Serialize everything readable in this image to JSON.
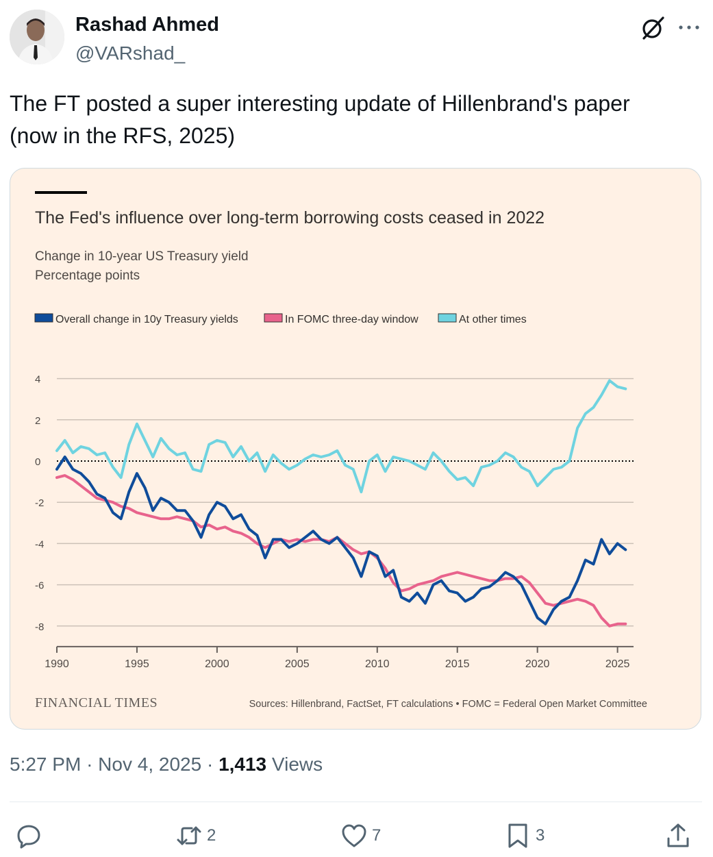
{
  "tweet": {
    "author_name": "Rashad Ahmed",
    "author_handle": "@VARshad_",
    "text_line1": "The FT posted a super interesting update of Hillenbrand's paper",
    "text_line2": "(now in the RFS, 2025)",
    "time": "5:27 PM",
    "date": "Nov 4, 2025",
    "views_count": "1,413",
    "views_label": "Views",
    "replies": "",
    "retweets": "2",
    "likes": "7",
    "bookmarks": "3"
  },
  "icons": {
    "avatar": "avatar",
    "grok": "grok-icon",
    "more": "more-icon",
    "reply": "reply-icon",
    "retweet": "retweet-icon",
    "like": "heart-icon",
    "bookmark": "bookmark-icon",
    "share": "share-icon"
  },
  "colors": {
    "card_bg": "#fff1e5",
    "overall": "#0f4c9a",
    "fomc": "#e8638c",
    "other": "#6fd3e0",
    "grid": "#ccc1b7",
    "text_secondary": "#536471"
  },
  "chart_data": {
    "type": "line",
    "title": "The Fed's influence over long-term borrowing costs ceased in 2022",
    "subtitle_line1": "Change in 10-year US Treasury yield",
    "subtitle_line2": "Percentage points",
    "source": "Sources: Hillenbrand, FactSet, FT calculations • FOMC = Federal Open Market Committee",
    "brand": "FINANCIAL TIMES",
    "xlim": [
      1990,
      2026
    ],
    "ylim": [
      -9,
      4.5
    ],
    "x_ticks": [
      1990,
      1995,
      2000,
      2005,
      2010,
      2015,
      2020,
      2025
    ],
    "y_ticks": [
      4,
      2,
      0,
      -2,
      -4,
      -6,
      -8
    ],
    "zero_line": "dotted",
    "legend": [
      "Overall change in 10y Treasury yields",
      "In FOMC three-day window",
      "At other times"
    ],
    "series": [
      {
        "name": "At other times",
        "color": "#6fd3e0",
        "x": [
          1990,
          1990.5,
          1991,
          1991.5,
          1992,
          1992.5,
          1993,
          1993.5,
          1994,
          1994.5,
          1995,
          1995.5,
          1996,
          1996.5,
          1997,
          1997.5,
          1998,
          1998.5,
          1999,
          1999.5,
          2000,
          2000.5,
          2001,
          2001.5,
          2002,
          2002.5,
          2003,
          2003.5,
          2004,
          2004.5,
          2005,
          2005.5,
          2006,
          2006.5,
          2007,
          2007.5,
          2008,
          2008.5,
          2009,
          2009.5,
          2010,
          2010.5,
          2011,
          2011.5,
          2012,
          2012.5,
          2013,
          2013.5,
          2014,
          2014.5,
          2015,
          2015.5,
          2016,
          2016.5,
          2017,
          2017.5,
          2018,
          2018.5,
          2019,
          2019.5,
          2020,
          2020.5,
          2021,
          2021.5,
          2022,
          2022.5,
          2023,
          2023.5,
          2024,
          2024.5,
          2025,
          2025.5
        ],
        "values": [
          0.5,
          1.0,
          0.4,
          0.7,
          0.6,
          0.3,
          0.4,
          -0.3,
          -0.8,
          0.8,
          1.8,
          1.0,
          0.2,
          1.1,
          0.6,
          0.3,
          0.4,
          -0.4,
          -0.5,
          0.8,
          1.0,
          0.9,
          0.2,
          0.7,
          0.0,
          0.4,
          -0.5,
          0.3,
          -0.1,
          -0.4,
          -0.2,
          0.1,
          0.3,
          0.2,
          0.3,
          0.5,
          -0.2,
          -0.4,
          -1.5,
          0.0,
          0.3,
          -0.5,
          0.2,
          0.1,
          0.0,
          -0.2,
          -0.4,
          0.4,
          0.0,
          -0.5,
          -0.9,
          -0.8,
          -1.2,
          -0.3,
          -0.2,
          0.0,
          0.4,
          0.2,
          -0.3,
          -0.5,
          -1.2,
          -0.8,
          -0.4,
          -0.3,
          0.0,
          1.6,
          2.3,
          2.6,
          3.2,
          3.9,
          3.6,
          3.5
        ]
      },
      {
        "name": "In FOMC three-day window",
        "color": "#e8638c",
        "x": [
          1990,
          1990.5,
          1991,
          1991.5,
          1992,
          1992.5,
          1993,
          1993.5,
          1994,
          1994.5,
          1995,
          1995.5,
          1996,
          1996.5,
          1997,
          1997.5,
          1998,
          1998.5,
          1999,
          1999.5,
          2000,
          2000.5,
          2001,
          2001.5,
          2002,
          2002.5,
          2003,
          2003.5,
          2004,
          2004.5,
          2005,
          2005.5,
          2006,
          2006.5,
          2007,
          2007.5,
          2008,
          2008.5,
          2009,
          2009.5,
          2010,
          2010.5,
          2011,
          2011.5,
          2012,
          2012.5,
          2013,
          2013.5,
          2014,
          2014.5,
          2015,
          2015.5,
          2016,
          2016.5,
          2017,
          2017.5,
          2018,
          2018.5,
          2019,
          2019.5,
          2020,
          2020.5,
          2021,
          2021.5,
          2022,
          2022.5,
          2023,
          2023.5,
          2024,
          2024.5,
          2025,
          2025.5
        ],
        "values": [
          -0.8,
          -0.7,
          -0.9,
          -1.2,
          -1.5,
          -1.8,
          -1.9,
          -2.0,
          -2.2,
          -2.3,
          -2.5,
          -2.6,
          -2.7,
          -2.8,
          -2.8,
          -2.7,
          -2.8,
          -2.9,
          -3.2,
          -3.1,
          -3.3,
          -3.2,
          -3.4,
          -3.5,
          -3.7,
          -4.0,
          -4.2,
          -4.0,
          -3.8,
          -3.9,
          -3.8,
          -3.9,
          -3.8,
          -3.8,
          -3.9,
          -3.7,
          -4.0,
          -4.3,
          -4.5,
          -4.4,
          -4.7,
          -5.2,
          -5.9,
          -6.3,
          -6.2,
          -6.0,
          -5.9,
          -5.8,
          -5.6,
          -5.5,
          -5.4,
          -5.5,
          -5.6,
          -5.7,
          -5.8,
          -5.8,
          -5.7,
          -5.7,
          -5.6,
          -5.9,
          -6.4,
          -6.9,
          -7.0,
          -6.9,
          -6.8,
          -6.7,
          -6.8,
          -7.0,
          -7.6,
          -8.0,
          -7.9,
          -7.9
        ]
      },
      {
        "name": "Overall change in 10y Treasury yields",
        "color": "#0f4c9a",
        "x": [
          1990,
          1990.5,
          1991,
          1991.5,
          1992,
          1992.5,
          1993,
          1993.5,
          1994,
          1994.5,
          1995,
          1995.5,
          1996,
          1996.5,
          1997,
          1997.5,
          1998,
          1998.5,
          1999,
          1999.5,
          2000,
          2000.5,
          2001,
          2001.5,
          2002,
          2002.5,
          2003,
          2003.5,
          2004,
          2004.5,
          2005,
          2005.5,
          2006,
          2006.5,
          2007,
          2007.5,
          2008,
          2008.5,
          2009,
          2009.5,
          2010,
          2010.5,
          2011,
          2011.5,
          2012,
          2012.5,
          2013,
          2013.5,
          2014,
          2014.5,
          2015,
          2015.5,
          2016,
          2016.5,
          2017,
          2017.5,
          2018,
          2018.5,
          2019,
          2019.5,
          2020,
          2020.5,
          2021,
          2021.5,
          2022,
          2022.5,
          2023,
          2023.5,
          2024,
          2024.5,
          2025,
          2025.5
        ],
        "values": [
          -0.4,
          0.2,
          -0.4,
          -0.6,
          -1.0,
          -1.6,
          -1.8,
          -2.5,
          -2.8,
          -1.5,
          -0.6,
          -1.3,
          -2.4,
          -1.8,
          -2.0,
          -2.4,
          -2.4,
          -2.9,
          -3.7,
          -2.6,
          -2.0,
          -2.2,
          -2.8,
          -2.6,
          -3.3,
          -3.6,
          -4.7,
          -3.8,
          -3.8,
          -4.2,
          -4.0,
          -3.7,
          -3.4,
          -3.8,
          -4.0,
          -3.7,
          -4.2,
          -4.7,
          -5.6,
          -4.4,
          -4.6,
          -5.6,
          -5.3,
          -6.6,
          -6.8,
          -6.4,
          -6.9,
          -6.0,
          -5.8,
          -6.3,
          -6.4,
          -6.8,
          -6.6,
          -6.2,
          -6.1,
          -5.8,
          -5.4,
          -5.6,
          -6.0,
          -6.8,
          -7.6,
          -7.9,
          -7.2,
          -6.8,
          -6.6,
          -5.8,
          -4.8,
          -5.0,
          -3.8,
          -4.5,
          -4.0,
          -4.3
        ]
      }
    ]
  }
}
